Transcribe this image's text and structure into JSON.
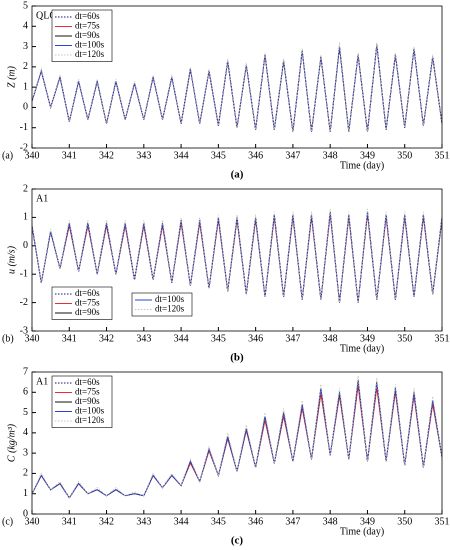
{
  "chart_data": [
    {
      "type": "line",
      "annotation": "QLG",
      "panel_label": "(a)",
      "caption": "(a)",
      "x_label": "Time (day)",
      "y_label": "Z (m)",
      "xlim": [
        340,
        351
      ],
      "xticks": [
        340,
        341,
        342,
        343,
        344,
        345,
        346,
        347,
        348,
        349,
        350,
        351
      ],
      "ylim": [
        -2,
        5
      ],
      "yticks": [
        -2,
        -1,
        0,
        1,
        2,
        3,
        4,
        5
      ],
      "x": [
        340,
        340.25,
        340.5,
        340.75,
        341,
        341.25,
        341.5,
        341.75,
        342,
        342.25,
        342.5,
        342.75,
        343,
        343.25,
        343.5,
        343.75,
        344,
        344.25,
        344.5,
        344.75,
        345,
        345.25,
        345.5,
        345.75,
        346,
        346.25,
        346.5,
        346.75,
        347,
        347.25,
        347.5,
        347.75,
        348,
        348.25,
        348.5,
        348.75,
        349,
        349.25,
        349.5,
        349.75,
        350,
        350.25,
        350.5,
        350.75,
        351
      ],
      "series": [
        {
          "name": "dt=60s",
          "color": "#1a1a6e",
          "linestyle": "dotted",
          "values": [
            0.3,
            1.8,
            0.0,
            1.5,
            -0.7,
            1.3,
            -0.6,
            1.3,
            -0.8,
            1.3,
            -0.6,
            1.2,
            -0.6,
            1.5,
            -0.6,
            1.5,
            -0.8,
            1.9,
            -0.8,
            1.8,
            -0.9,
            2.3,
            -1.0,
            2.1,
            -1.1,
            2.6,
            -1.1,
            2.3,
            -1.2,
            2.8,
            -1.2,
            2.5,
            -1.2,
            3.0,
            -1.2,
            2.6,
            -1.2,
            3.1,
            -1.1,
            2.6,
            -1.0,
            2.9,
            -0.9,
            2.5,
            -0.8
          ]
        },
        {
          "name": "dt=75s",
          "color": "#e03030",
          "linestyle": "solid",
          "values": [
            0.3,
            1.8,
            0.0,
            1.5,
            -0.7,
            1.3,
            -0.6,
            1.3,
            -0.8,
            1.3,
            -0.6,
            1.2,
            -0.6,
            1.5,
            -0.6,
            1.5,
            -0.8,
            1.9,
            -0.8,
            1.8,
            -0.9,
            2.3,
            -1.0,
            2.1,
            -1.1,
            2.6,
            -1.1,
            2.3,
            -1.2,
            2.8,
            -1.2,
            2.5,
            -1.2,
            3.0,
            -1.2,
            2.6,
            -1.2,
            3.1,
            -1.1,
            2.6,
            -1.0,
            2.9,
            -0.9,
            2.5,
            -0.8
          ]
        },
        {
          "name": "dt=90s",
          "color": "#111111",
          "linestyle": "solid",
          "values": [
            0.3,
            1.8,
            0.0,
            1.5,
            -0.7,
            1.3,
            -0.6,
            1.3,
            -0.8,
            1.3,
            -0.6,
            1.2,
            -0.6,
            1.5,
            -0.6,
            1.5,
            -0.8,
            1.9,
            -0.8,
            1.8,
            -0.9,
            2.3,
            -1.0,
            2.1,
            -1.1,
            2.6,
            -1.1,
            2.3,
            -1.2,
            2.8,
            -1.2,
            2.5,
            -1.2,
            3.0,
            -1.2,
            2.6,
            -1.2,
            3.1,
            -1.1,
            2.6,
            -1.0,
            2.9,
            -0.9,
            2.5,
            -0.8
          ]
        },
        {
          "name": "dt=100s",
          "color": "#3040d0",
          "linestyle": "solid",
          "values": [
            0.3,
            1.8,
            0.0,
            1.5,
            -0.7,
            1.3,
            -0.6,
            1.3,
            -0.8,
            1.3,
            -0.6,
            1.2,
            -0.6,
            1.5,
            -0.6,
            1.5,
            -0.8,
            1.9,
            -0.8,
            1.8,
            -0.9,
            2.3,
            -1.0,
            2.1,
            -1.1,
            2.6,
            -1.1,
            2.3,
            -1.2,
            2.8,
            -1.2,
            2.5,
            -1.2,
            3.0,
            -1.2,
            2.6,
            -1.2,
            3.1,
            -1.1,
            2.6,
            -1.0,
            2.9,
            -0.9,
            2.5,
            -0.8
          ]
        },
        {
          "name": "dt=120s",
          "color": "#c8c8a0",
          "linestyle": "dotted",
          "values": [
            0.3,
            1.9,
            0.0,
            1.6,
            -0.7,
            1.4,
            -0.6,
            1.4,
            -0.8,
            1.4,
            -0.6,
            1.3,
            -0.6,
            1.6,
            -0.6,
            1.6,
            -0.8,
            2.0,
            -0.8,
            1.9,
            -0.9,
            2.4,
            -1.0,
            2.2,
            -1.1,
            2.7,
            -1.1,
            2.4,
            -1.2,
            2.9,
            -1.2,
            2.6,
            -1.2,
            3.2,
            -1.2,
            2.7,
            -1.2,
            3.2,
            -1.1,
            2.7,
            -1.0,
            3.0,
            -0.9,
            2.6,
            -0.8
          ]
        }
      ]
    },
    {
      "type": "line",
      "annotation": "A1",
      "panel_label": "(b)",
      "caption": "(b)",
      "x_label": "Time (day)",
      "y_label": "u (m/s)",
      "xlim": [
        340,
        351
      ],
      "xticks": [
        340,
        341,
        342,
        343,
        344,
        345,
        346,
        347,
        348,
        349,
        350,
        351
      ],
      "ylim": [
        -3,
        2
      ],
      "yticks": [
        -3,
        -2,
        -1,
        0,
        1,
        2
      ],
      "x": [
        340,
        340.25,
        340.5,
        340.75,
        341,
        341.25,
        341.5,
        341.75,
        342,
        342.25,
        342.5,
        342.75,
        343,
        343.25,
        343.5,
        343.75,
        344,
        344.25,
        344.5,
        344.75,
        345,
        345.25,
        345.5,
        345.75,
        346,
        346.25,
        346.5,
        346.75,
        347,
        347.25,
        347.5,
        347.75,
        348,
        348.25,
        348.5,
        348.75,
        349,
        349.25,
        349.5,
        349.75,
        350,
        350.25,
        350.5,
        350.75,
        351
      ],
      "series": [
        {
          "name": "dt=60s",
          "color": "#1a1a6e",
          "linestyle": "dotted",
          "values": [
            0.7,
            -1.3,
            0.5,
            -0.8,
            0.8,
            -0.9,
            0.8,
            -1.0,
            0.8,
            -1.0,
            0.8,
            -1.2,
            0.8,
            -1.2,
            0.8,
            -1.3,
            0.9,
            -1.4,
            0.9,
            -1.5,
            1.0,
            -1.6,
            1.0,
            -1.7,
            1.0,
            -1.8,
            1.1,
            -1.8,
            1.1,
            -1.9,
            1.1,
            -1.9,
            1.2,
            -2.0,
            1.1,
            -2.0,
            1.2,
            -1.9,
            1.1,
            -1.9,
            1.1,
            -1.8,
            1.1,
            -1.7,
            1.0
          ]
        },
        {
          "name": "dt=75s",
          "color": "#e03030",
          "linestyle": "solid",
          "values": [
            0.7,
            -1.3,
            0.5,
            -0.8,
            0.7,
            -0.9,
            0.7,
            -1.0,
            0.7,
            -1.0,
            0.7,
            -1.2,
            0.7,
            -1.2,
            0.7,
            -1.3,
            0.8,
            -1.4,
            0.8,
            -1.5,
            0.9,
            -1.6,
            0.9,
            -1.7,
            0.9,
            -1.8,
            1.0,
            -1.8,
            1.0,
            -1.9,
            1.0,
            -1.9,
            1.1,
            -2.0,
            1.0,
            -2.0,
            1.1,
            -1.9,
            1.0,
            -1.9,
            1.0,
            -1.8,
            1.0,
            -1.7,
            0.9
          ]
        },
        {
          "name": "dt=90s",
          "color": "#111111",
          "linestyle": "solid",
          "values": [
            0.7,
            -1.3,
            0.5,
            -0.8,
            0.8,
            -0.9,
            0.8,
            -1.0,
            0.8,
            -1.0,
            0.8,
            -1.2,
            0.8,
            -1.2,
            0.8,
            -1.3,
            0.9,
            -1.4,
            0.9,
            -1.5,
            1.0,
            -1.6,
            1.0,
            -1.7,
            1.0,
            -1.8,
            1.1,
            -1.8,
            1.1,
            -1.9,
            1.1,
            -1.9,
            1.2,
            -2.0,
            1.1,
            -2.0,
            1.2,
            -1.9,
            1.1,
            -1.9,
            1.1,
            -1.8,
            1.1,
            -1.7,
            1.0
          ]
        },
        {
          "name": "dt=100s",
          "color": "#3040d0",
          "linestyle": "solid",
          "values": [
            0.7,
            -1.3,
            0.5,
            -0.8,
            0.8,
            -0.9,
            0.8,
            -1.0,
            0.8,
            -1.0,
            0.8,
            -1.2,
            0.8,
            -1.2,
            0.8,
            -1.3,
            0.9,
            -1.4,
            0.9,
            -1.5,
            1.0,
            -1.6,
            1.0,
            -1.7,
            1.0,
            -1.8,
            1.1,
            -1.8,
            1.1,
            -1.9,
            1.1,
            -1.9,
            1.2,
            -2.0,
            1.1,
            -2.0,
            1.2,
            -1.9,
            1.1,
            -1.9,
            1.1,
            -1.8,
            1.1,
            -1.7,
            1.0
          ]
        },
        {
          "name": "dt=120s",
          "color": "#c8c8a0",
          "linestyle": "dotted",
          "values": [
            0.8,
            -1.3,
            0.6,
            -0.8,
            0.9,
            -0.9,
            0.9,
            -1.0,
            0.9,
            -1.0,
            0.9,
            -1.2,
            0.9,
            -1.2,
            0.9,
            -1.3,
            1.0,
            -1.4,
            1.0,
            -1.5,
            1.1,
            -1.6,
            1.1,
            -1.7,
            1.1,
            -1.8,
            1.2,
            -1.8,
            1.2,
            -1.9,
            1.2,
            -1.9,
            1.3,
            -2.0,
            1.2,
            -2.0,
            1.3,
            -1.9,
            1.2,
            -1.9,
            1.2,
            -1.8,
            1.2,
            -1.7,
            1.1
          ]
        }
      ]
    },
    {
      "type": "line",
      "annotation": "A1",
      "panel_label": "(c)",
      "caption": "(c)",
      "x_label": "Time (day)",
      "y_label": "C (kg/m³)",
      "xlim": [
        340,
        351
      ],
      "xticks": [
        340,
        341,
        342,
        343,
        344,
        345,
        346,
        347,
        348,
        349,
        350,
        351
      ],
      "ylim": [
        0,
        7
      ],
      "yticks": [
        0,
        1,
        2,
        3,
        4,
        5,
        6,
        7
      ],
      "x": [
        340,
        340.25,
        340.5,
        340.75,
        341,
        341.25,
        341.5,
        341.75,
        342,
        342.25,
        342.5,
        342.75,
        343,
        343.25,
        343.5,
        343.75,
        344,
        344.25,
        344.5,
        344.75,
        345,
        345.25,
        345.5,
        345.75,
        346,
        346.25,
        346.5,
        346.75,
        347,
        347.25,
        347.5,
        347.75,
        348,
        348.25,
        348.5,
        348.75,
        349,
        349.25,
        349.5,
        349.75,
        350,
        350.25,
        350.5,
        350.75,
        351
      ],
      "series": [
        {
          "name": "dt=60s",
          "color": "#1a1a6e",
          "linestyle": "dotted",
          "values": [
            1.0,
            1.9,
            1.2,
            1.5,
            0.8,
            1.5,
            1.0,
            1.2,
            0.9,
            1.2,
            0.9,
            1.0,
            0.9,
            1.9,
            1.3,
            1.9,
            1.4,
            2.6,
            1.6,
            3.2,
            1.9,
            3.8,
            2.1,
            4.2,
            2.3,
            4.8,
            2.5,
            5.0,
            2.6,
            5.4,
            2.7,
            6.2,
            2.9,
            6.0,
            2.7,
            6.6,
            2.6,
            6.5,
            2.6,
            6.2,
            2.4,
            6.0,
            2.3,
            5.6,
            2.8
          ]
        },
        {
          "name": "dt=75s",
          "color": "#e03030",
          "linestyle": "solid",
          "values": [
            1.0,
            1.9,
            1.2,
            1.5,
            0.8,
            1.5,
            1.0,
            1.2,
            0.9,
            1.2,
            0.9,
            1.0,
            0.9,
            1.9,
            1.3,
            1.9,
            1.4,
            2.5,
            1.6,
            3.1,
            1.9,
            3.7,
            2.1,
            4.1,
            2.3,
            4.6,
            2.5,
            4.8,
            2.6,
            5.2,
            2.7,
            5.9,
            2.9,
            5.8,
            2.7,
            6.3,
            2.6,
            6.2,
            2.6,
            6.0,
            2.4,
            5.8,
            2.3,
            5.4,
            2.8
          ]
        },
        {
          "name": "dt=90s",
          "color": "#111111",
          "linestyle": "solid",
          "values": [
            1.0,
            1.9,
            1.2,
            1.5,
            0.8,
            1.5,
            1.0,
            1.2,
            0.9,
            1.2,
            0.9,
            1.0,
            0.9,
            1.9,
            1.3,
            1.9,
            1.4,
            2.6,
            1.6,
            3.2,
            1.9,
            3.8,
            2.1,
            4.2,
            2.3,
            4.8,
            2.5,
            5.0,
            2.6,
            5.4,
            2.7,
            6.2,
            2.9,
            6.0,
            2.7,
            6.6,
            2.6,
            6.5,
            2.6,
            6.2,
            2.4,
            6.0,
            2.3,
            5.6,
            2.8
          ]
        },
        {
          "name": "dt=100s",
          "color": "#3040d0",
          "linestyle": "solid",
          "values": [
            1.0,
            1.9,
            1.2,
            1.5,
            0.8,
            1.5,
            1.0,
            1.2,
            0.9,
            1.2,
            0.9,
            1.0,
            0.9,
            1.9,
            1.3,
            1.9,
            1.4,
            2.6,
            1.6,
            3.2,
            1.9,
            3.8,
            2.1,
            4.2,
            2.3,
            4.8,
            2.5,
            5.0,
            2.6,
            5.4,
            2.7,
            6.2,
            2.9,
            6.0,
            2.7,
            6.6,
            2.6,
            6.5,
            2.6,
            6.2,
            2.4,
            6.0,
            2.3,
            5.6,
            2.8
          ]
        },
        {
          "name": "dt=120s",
          "color": "#c8c8a0",
          "linestyle": "dotted",
          "values": [
            1.0,
            2.0,
            1.2,
            1.6,
            0.8,
            1.6,
            1.0,
            1.3,
            0.9,
            1.3,
            0.9,
            1.1,
            0.9,
            2.0,
            1.3,
            2.0,
            1.4,
            2.7,
            1.6,
            3.3,
            1.9,
            4.0,
            2.1,
            4.4,
            2.3,
            5.0,
            2.5,
            5.2,
            2.6,
            5.6,
            2.7,
            6.4,
            2.9,
            6.2,
            2.7,
            6.8,
            2.6,
            6.7,
            2.6,
            6.4,
            2.4,
            6.2,
            2.3,
            5.8,
            2.8
          ]
        }
      ]
    }
  ]
}
